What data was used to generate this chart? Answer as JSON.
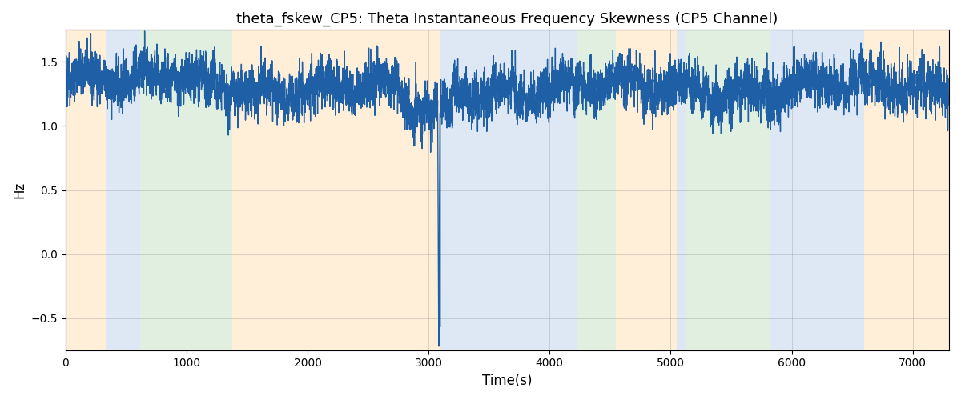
{
  "title": "theta_fskew_CP5: Theta Instantaneous Frequency Skewness (CP5 Channel)",
  "xlabel": "Time(s)",
  "ylabel": "Hz",
  "xlim": [
    0,
    7300
  ],
  "ylim": [
    -0.75,
    1.75
  ],
  "line_color": "#1f5fa6",
  "line_width": 1.0,
  "bg_regions": [
    {
      "xmin": 0,
      "xmax": 330,
      "color": "#ffd59e",
      "alpha": 0.4
    },
    {
      "xmin": 330,
      "xmax": 620,
      "color": "#aec6e8",
      "alpha": 0.4
    },
    {
      "xmin": 620,
      "xmax": 1380,
      "color": "#b2d8b2",
      "alpha": 0.4
    },
    {
      "xmin": 1380,
      "xmax": 3100,
      "color": "#ffd59e",
      "alpha": 0.4
    },
    {
      "xmin": 3100,
      "xmax": 4050,
      "color": "#aec6e8",
      "alpha": 0.4
    },
    {
      "xmin": 4050,
      "xmax": 4230,
      "color": "#aec6e8",
      "alpha": 0.4
    },
    {
      "xmin": 4230,
      "xmax": 4550,
      "color": "#b2d8b2",
      "alpha": 0.4
    },
    {
      "xmin": 4550,
      "xmax": 5050,
      "color": "#ffd59e",
      "alpha": 0.4
    },
    {
      "xmin": 5050,
      "xmax": 5130,
      "color": "#aec6e8",
      "alpha": 0.4
    },
    {
      "xmin": 5130,
      "xmax": 5820,
      "color": "#b2d8b2",
      "alpha": 0.4
    },
    {
      "xmin": 5820,
      "xmax": 5970,
      "color": "#aec6e8",
      "alpha": 0.4
    },
    {
      "xmin": 5970,
      "xmax": 6600,
      "color": "#aec6e8",
      "alpha": 0.4
    },
    {
      "xmin": 6600,
      "xmax": 7300,
      "color": "#ffd59e",
      "alpha": 0.4
    }
  ],
  "seed": 42,
  "n_points": 7300,
  "base_value": 1.3,
  "noise_scale": 0.08,
  "spike_times": [
    3080,
    3090,
    3095
  ],
  "spike_values": [
    -0.72,
    -0.2,
    -0.4
  ],
  "grid": true,
  "title_fontsize": 13
}
